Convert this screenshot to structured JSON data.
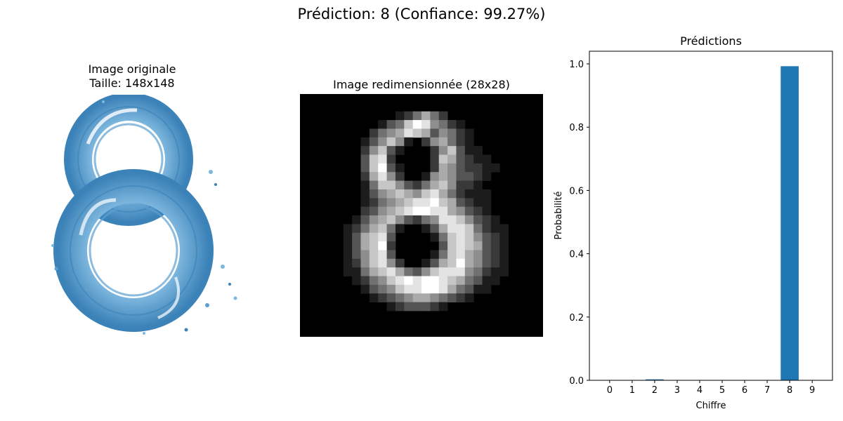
{
  "figure": {
    "suptitle": "Prédiction: 8 (Confiance: 99.27%)",
    "panel1": {
      "title_line1": "Image originale",
      "title_line2": "Taille: 148x148"
    },
    "panel2": {
      "title": "Image redimensionnée (28x28)"
    }
  },
  "pixel_grid": {
    "size": 28,
    "rows": [
      "0000000000000000000000000000",
      "0000000000000000000000000000",
      "0000000000012464200000000000",
      "0000000001347985421000000000",
      "0000000024568763542100000000",
      "0000000135751025642100000000",
      "0000000257310002573110000000",
      "0000000378200002763211000000",
      "0000000379310002653221100000",
      "0000000268520015653321000000",
      "0000000147753246752210000000",
      "0000000135676578642111000000",
      "0000000124567889763211000000",
      "0000000235678998865321000000",
      "0000001356753245887532100000",
      "0000012467410013688742110000",
      "0000013678300001478753210000",
      "0000013679200000378763210000",
      "0000013578300001478653210000",
      "0000012578520013679653210000",
      "0000011467864357888542110000",
      "0000001245789899876431100000",
      "0000000134578899864311000000",
      "0000000012345665432100000000",
      "0000000000123332100000000000",
      "0000000000000000000000000000",
      "0000000000000000000000000000",
      "0000000000000000000000000000"
    ]
  },
  "chart_data": {
    "type": "bar",
    "title": "Prédictions",
    "xlabel": "Chiffre",
    "ylabel": "Probabilité",
    "categories": [
      "0",
      "1",
      "2",
      "3",
      "4",
      "5",
      "6",
      "7",
      "8",
      "9"
    ],
    "values": [
      0.001,
      0.0,
      0.003,
      0.001,
      0.0,
      0.0,
      0.001,
      0.0,
      0.9927,
      0.0
    ],
    "xlim": [
      -0.9,
      9.9
    ],
    "ylim": [
      0,
      1.04
    ],
    "yticks": [
      0.0,
      0.2,
      0.4,
      0.6,
      0.8,
      1.0
    ],
    "ytick_labels": [
      "0.0",
      "0.2",
      "0.4",
      "0.6",
      "0.8",
      "1.0"
    ],
    "bar_color": "#1f77b4",
    "grid": false
  },
  "colors": {
    "water_dark": "#3b82b8",
    "water_mid": "#7fb8df",
    "water_light": "#d4e9f7"
  }
}
